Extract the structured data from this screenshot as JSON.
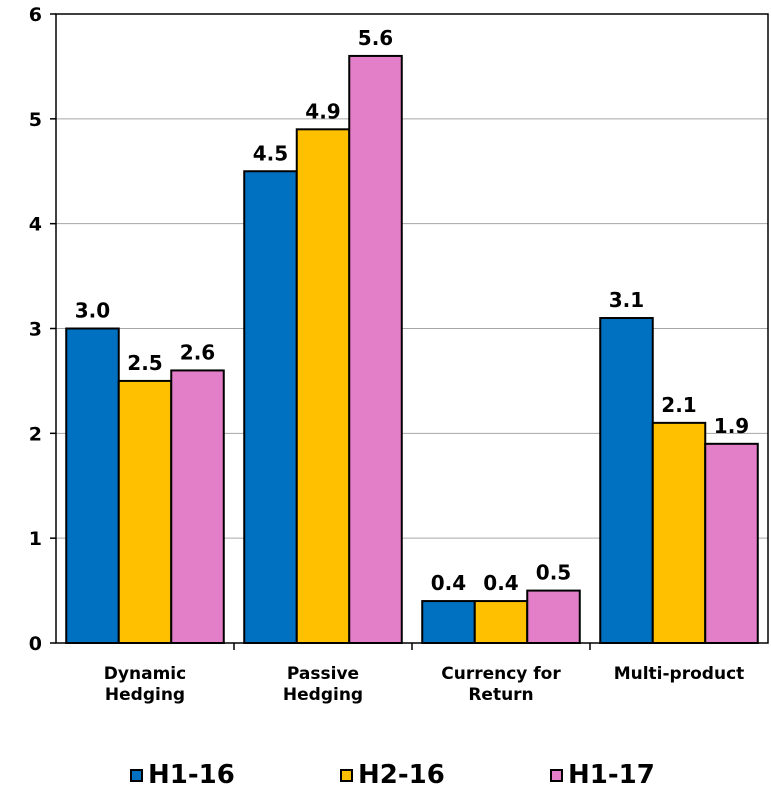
{
  "chart_data": {
    "type": "bar",
    "categories": [
      [
        "Dynamic",
        "Hedging"
      ],
      [
        "Passive",
        "Hedging"
      ],
      [
        "Currency for",
        "Return"
      ],
      [
        "Multi-product"
      ]
    ],
    "series": [
      {
        "name": "H1-16",
        "color": "#0070C0",
        "values": [
          3.0,
          4.5,
          0.4,
          3.1
        ],
        "labels": [
          "3.0",
          "4.5",
          "0.4",
          "3.1"
        ]
      },
      {
        "name": "H2-16",
        "color": "#FFC000",
        "values": [
          2.5,
          4.9,
          0.4,
          2.1
        ],
        "labels": [
          "2.5",
          "4.9",
          "0.4",
          "2.1"
        ]
      },
      {
        "name": "H1-17",
        "color": "#E37FC8",
        "values": [
          2.6,
          5.6,
          0.5,
          1.9
        ],
        "labels": [
          "2.6",
          "5.6",
          "0.5",
          "1.9"
        ]
      }
    ],
    "ylim": [
      0,
      6
    ],
    "yticks": [
      "0",
      "1",
      "2",
      "3",
      "4",
      "5",
      "6"
    ],
    "grid": true,
    "legend_position": "bottom"
  }
}
